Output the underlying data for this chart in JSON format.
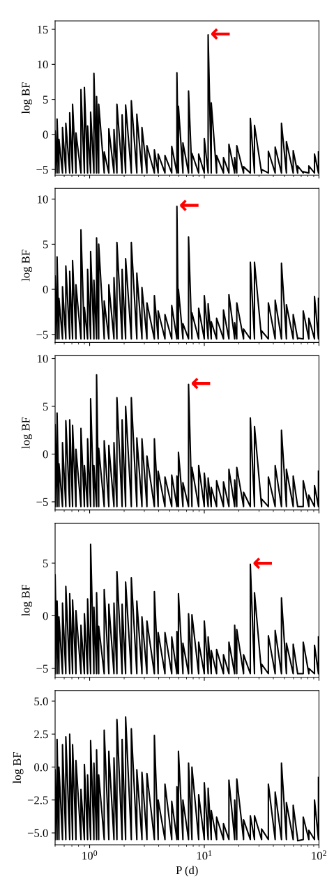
{
  "chart_data": [
    {
      "type": "line",
      "ylabel": "log BF",
      "log": "x",
      "tick_labels": "y",
      "xlim": [
        0.5,
        100
      ],
      "ylim": [
        -5.8,
        16.2
      ],
      "xticks": [
        {
          "value": 1,
          "label": null
        },
        {
          "value": 10,
          "label": null
        },
        {
          "value": 100,
          "label": null
        }
      ],
      "yticks": [
        -5,
        0,
        5,
        10,
        15
      ],
      "annotations": [
        {
          "text": "←",
          "x": 10.8,
          "y": 14.2
        }
      ],
      "x": [
        0.5,
        0.5,
        0.52,
        0.52,
        0.54,
        0.54,
        0.58,
        0.58,
        0.62,
        0.62,
        0.67,
        0.67,
        0.71,
        0.71,
        0.76,
        0.76,
        0.84,
        0.84,
        0.9,
        0.9,
        0.96,
        0.96,
        1.02,
        1.02,
        1.09,
        1.09,
        1.15,
        1.15,
        1.2,
        1.2,
        1.34,
        1.34,
        1.47,
        1.47,
        1.63,
        1.63,
        1.73,
        1.73,
        1.92,
        1.92,
        2.06,
        2.06,
        2.31,
        2.31,
        2.58,
        2.58,
        2.86,
        2.86,
        3.16,
        3.16,
        3.67,
        3.67,
        3.96,
        3.96,
        4.54,
        4.54,
        5.2,
        5.2,
        5.77,
        5.77,
        5.95,
        5.95,
        6.51,
        6.51,
        7.29,
        7.29,
        7.8,
        7.8,
        8.93,
        8.93,
        10.0,
        10.0,
        10.8,
        10.8,
        11.5,
        11.5,
        12.8,
        12.8,
        14.7,
        14.7,
        16.4,
        16.4,
        18.4,
        18.4,
        19.2,
        19.2,
        22.0,
        22.0,
        25.2,
        25.2,
        27.4,
        27.4,
        31.6,
        31.6,
        36.2,
        36.2,
        41.5,
        41.5,
        47.1,
        47.1,
        52.0,
        52.0,
        59.6,
        59.6,
        65.2,
        65.2,
        72.9,
        72.9,
        81.6,
        81.6,
        91.4,
        91.4,
        99,
        99
      ],
      "series": [
        {
          "color": "#000000",
          "values": [
            -5.5,
            0.5,
            -5.5,
            2.2,
            -5.5,
            -0.7,
            -5.5,
            1.0,
            -5.5,
            1.6,
            -5.5,
            3.1,
            -5.5,
            4.3,
            -5.5,
            0.2,
            -5.5,
            6.4,
            -5.5,
            6.7,
            -5.5,
            1.2,
            -5.5,
            3.2,
            -5.5,
            8.7,
            -5.5,
            5.4,
            -5.5,
            4.3,
            -5.5,
            -2.5,
            -5.5,
            0.8,
            -5.5,
            0.7,
            -5.5,
            4.3,
            -5.5,
            2.8,
            -5.5,
            4.2,
            -5.5,
            4.8,
            -5.5,
            2.9,
            -5.5,
            1.0,
            -5.5,
            -1.6,
            -5.5,
            -2.2,
            -5.5,
            -2.8,
            -5.5,
            -3.0,
            -5.5,
            -1.7,
            -5.5,
            8.8,
            -5.5,
            4.0,
            -5.5,
            -1.2,
            -5.5,
            6.2,
            -5.5,
            -2.7,
            -5.5,
            -2.8,
            -5.5,
            -0.6,
            -5.5,
            14.2,
            -5.5,
            4.5,
            -5.5,
            -3.0,
            -5.5,
            -3.3,
            -5.5,
            -1.4,
            -5.5,
            -3.3,
            -5.5,
            -1.6,
            -5.5,
            -4.6,
            -5.5,
            2.3,
            -5.5,
            1.3,
            -5.5,
            -5.0,
            -5.5,
            -2.4,
            -5.5,
            -1.8,
            -5.5,
            1.6,
            -5.5,
            -1.0,
            -5.5,
            -2.3,
            -5.5,
            -4.5,
            -5.5,
            -5.3,
            -5.5,
            -4.5,
            -5.5,
            -2.8,
            -5.5,
            -2.5
          ]
        }
      ]
    },
    {
      "type": "line",
      "ylabel": "log BF",
      "log": "x",
      "tick_labels": "y",
      "xlim": [
        0.5,
        100
      ],
      "ylim": [
        -5.9,
        11.2
      ],
      "xticks": [
        {
          "value": 1,
          "label": null
        },
        {
          "value": 10,
          "label": null
        },
        {
          "value": 100,
          "label": null
        }
      ],
      "yticks": [
        -5,
        0,
        5,
        10
      ],
      "annotations": [
        {
          "text": "←",
          "x": 5.77,
          "y": 9.2
        }
      ],
      "x": [
        0.5,
        0.5,
        0.52,
        0.52,
        0.54,
        0.54,
        0.58,
        0.58,
        0.62,
        0.62,
        0.67,
        0.67,
        0.71,
        0.71,
        0.76,
        0.76,
        0.84,
        0.84,
        0.9,
        0.9,
        0.96,
        0.96,
        1.02,
        1.02,
        1.09,
        1.09,
        1.15,
        1.15,
        1.2,
        1.2,
        1.34,
        1.34,
        1.47,
        1.47,
        1.63,
        1.63,
        1.73,
        1.73,
        1.92,
        1.92,
        2.06,
        2.06,
        2.31,
        2.31,
        2.58,
        2.58,
        2.86,
        2.86,
        3.16,
        3.16,
        3.67,
        3.67,
        3.96,
        3.96,
        4.54,
        4.54,
        5.2,
        5.2,
        5.77,
        5.77,
        5.95,
        5.95,
        6.51,
        6.51,
        7.29,
        7.29,
        7.8,
        7.8,
        8.93,
        8.93,
        10.0,
        10.0,
        10.8,
        10.8,
        11.5,
        11.5,
        12.8,
        12.8,
        14.7,
        14.7,
        16.4,
        16.4,
        18.4,
        18.4,
        19.2,
        19.2,
        22.0,
        22.0,
        25.2,
        25.2,
        27.4,
        27.4,
        31.6,
        31.6,
        36.2,
        36.2,
        41.5,
        41.5,
        47.1,
        47.1,
        52.0,
        52.0,
        59.6,
        59.6,
        65.2,
        65.2,
        72.9,
        72.9,
        81.6,
        81.6,
        91.4,
        91.4,
        99,
        99
      ],
      "series": [
        {
          "color": "#000000",
          "values": [
            -5.5,
            1.5,
            -5.5,
            3.6,
            -5.5,
            -1.0,
            -5.5,
            0.3,
            -5.5,
            2.6,
            -5.5,
            2.0,
            -5.5,
            3.2,
            -5.5,
            0.5,
            -5.5,
            6.6,
            -5.5,
            -2.0,
            -5.5,
            2.2,
            -5.5,
            4.2,
            -5.5,
            1.0,
            -5.5,
            5.7,
            -5.5,
            5.0,
            -5.5,
            -1.3,
            -5.5,
            0.5,
            -5.5,
            1.3,
            -5.5,
            5.2,
            -5.5,
            2.2,
            -5.5,
            3.4,
            -5.5,
            5.2,
            -5.5,
            1.8,
            -5.5,
            0.2,
            -5.5,
            -1.5,
            -5.5,
            -0.7,
            -5.5,
            -2.4,
            -5.5,
            -2.8,
            -5.5,
            -1.8,
            -5.5,
            9.2,
            -5.5,
            0.0,
            -5.5,
            -3.8,
            -5.5,
            5.8,
            -5.5,
            -2.6,
            -5.5,
            -2.1,
            -5.5,
            -0.7,
            -5.5,
            -1.6,
            -5.5,
            -3.6,
            -5.5,
            -3.2,
            -5.5,
            -2.3,
            -5.5,
            -0.6,
            -5.5,
            -3.7,
            -5.5,
            -1.5,
            -5.5,
            -4.4,
            -5.5,
            3.0,
            -5.5,
            3.0,
            -5.5,
            -4.6,
            -5.5,
            -1.5,
            -5.5,
            -1.2,
            -5.5,
            2.9,
            -5.5,
            -1.7,
            -5.5,
            -2.8,
            -5.5,
            -5.4,
            -5.5,
            -2.4,
            -5.5,
            -3.2,
            -5.5,
            -0.8,
            -5.5,
            -1.0
          ]
        }
      ]
    },
    {
      "type": "line",
      "ylabel": "log BF",
      "log": "x",
      "tick_labels": "y",
      "xlim": [
        0.5,
        100
      ],
      "ylim": [
        -5.85,
        10.3
      ],
      "xticks": [
        {
          "value": 1,
          "label": null
        },
        {
          "value": 10,
          "label": null
        },
        {
          "value": 100,
          "label": null
        }
      ],
      "yticks": [
        -5,
        0,
        5,
        10
      ],
      "annotations": [
        {
          "text": "←",
          "x": 7.29,
          "y": 7.3
        }
      ],
      "x": [
        0.5,
        0.5,
        0.52,
        0.52,
        0.54,
        0.54,
        0.58,
        0.58,
        0.62,
        0.62,
        0.67,
        0.67,
        0.71,
        0.71,
        0.76,
        0.76,
        0.84,
        0.84,
        0.9,
        0.9,
        0.96,
        0.96,
        1.02,
        1.02,
        1.09,
        1.09,
        1.15,
        1.15,
        1.2,
        1.2,
        1.34,
        1.34,
        1.47,
        1.47,
        1.63,
        1.63,
        1.73,
        1.73,
        1.92,
        1.92,
        2.06,
        2.06,
        2.31,
        2.31,
        2.58,
        2.58,
        2.86,
        2.86,
        3.16,
        3.16,
        3.67,
        3.67,
        3.96,
        3.96,
        4.54,
        4.54,
        5.2,
        5.2,
        5.77,
        5.77,
        5.95,
        5.95,
        6.51,
        6.51,
        7.29,
        7.29,
        7.8,
        7.8,
        8.93,
        8.93,
        10.0,
        10.0,
        10.8,
        10.8,
        11.5,
        11.5,
        12.8,
        12.8,
        14.7,
        14.7,
        16.4,
        16.4,
        18.4,
        18.4,
        19.2,
        19.2,
        22.0,
        22.0,
        25.2,
        25.2,
        27.4,
        27.4,
        31.6,
        31.6,
        36.2,
        36.2,
        41.5,
        41.5,
        47.1,
        47.1,
        52.0,
        52.0,
        59.6,
        59.6,
        65.2,
        65.2,
        72.9,
        72.9,
        81.6,
        81.6,
        91.4,
        91.4,
        99,
        99
      ],
      "series": [
        {
          "color": "#000000",
          "values": [
            -5.5,
            3.1,
            -5.5,
            4.3,
            -5.5,
            -1.0,
            -5.5,
            1.2,
            -5.5,
            3.5,
            -5.5,
            3.6,
            -5.5,
            3.0,
            -5.5,
            0.5,
            -5.5,
            2.7,
            -5.5,
            -1.2,
            -5.5,
            1.6,
            -5.5,
            5.8,
            -5.5,
            -1.2,
            -5.5,
            8.3,
            -5.5,
            0.6,
            -5.5,
            1.4,
            -5.5,
            0.9,
            -5.5,
            1.2,
            -5.5,
            5.9,
            -5.5,
            3.6,
            -5.5,
            5.0,
            -5.5,
            5.9,
            -5.5,
            1.7,
            -5.5,
            1.6,
            -5.5,
            -0.2,
            -5.5,
            1.6,
            -5.5,
            -1.8,
            -5.5,
            -2.4,
            -5.5,
            -2.2,
            -5.5,
            -2.3,
            -5.5,
            0.2,
            -5.5,
            -3.0,
            -5.5,
            7.3,
            -5.5,
            -1.4,
            -5.5,
            -1.2,
            -5.5,
            -2.0,
            -5.5,
            -2.5,
            -5.5,
            -3.5,
            -5.5,
            -2.8,
            -5.5,
            -2.9,
            -5.5,
            -1.6,
            -5.5,
            -2.7,
            -5.5,
            -1.4,
            -5.5,
            -4.0,
            -5.5,
            3.8,
            -5.5,
            2.9,
            -5.5,
            -4.7,
            -5.5,
            -2.4,
            -5.5,
            -1.2,
            -5.5,
            2.5,
            -5.5,
            -1.6,
            -5.5,
            -2.3,
            -5.5,
            -5.5,
            -5.5,
            -2.8,
            -5.5,
            -4.3,
            -5.5,
            -3.3,
            -5.5,
            -1.8
          ]
        }
      ]
    },
    {
      "type": "line",
      "ylabel": "log BF",
      "log": "x",
      "tick_labels": "y",
      "xlim": [
        0.5,
        100
      ],
      "ylim": [
        -5.85,
        8.8
      ],
      "xticks": [
        {
          "value": 1,
          "label": null
        },
        {
          "value": 10,
          "label": null
        },
        {
          "value": 100,
          "label": null
        }
      ],
      "yticks": [
        -5,
        0,
        5
      ],
      "annotations": [
        {
          "text": "←",
          "x": 25.2,
          "y": 4.9
        }
      ],
      "x": [
        0.5,
        0.5,
        0.52,
        0.52,
        0.54,
        0.54,
        0.58,
        0.58,
        0.62,
        0.62,
        0.67,
        0.67,
        0.71,
        0.71,
        0.76,
        0.76,
        0.84,
        0.84,
        0.9,
        0.9,
        0.96,
        0.96,
        1.02,
        1.02,
        1.09,
        1.09,
        1.15,
        1.15,
        1.2,
        1.2,
        1.34,
        1.34,
        1.47,
        1.47,
        1.63,
        1.63,
        1.73,
        1.73,
        1.92,
        1.92,
        2.06,
        2.06,
        2.31,
        2.31,
        2.58,
        2.58,
        2.86,
        2.86,
        3.16,
        3.16,
        3.67,
        3.67,
        3.96,
        3.96,
        4.54,
        4.54,
        5.2,
        5.2,
        5.77,
        5.77,
        5.95,
        5.95,
        6.51,
        6.51,
        7.29,
        7.29,
        7.8,
        7.8,
        8.93,
        8.93,
        10.0,
        10.0,
        10.8,
        10.8,
        11.5,
        11.5,
        12.8,
        12.8,
        14.7,
        14.7,
        16.4,
        16.4,
        18.4,
        18.4,
        19.2,
        19.2,
        22.0,
        22.0,
        25.2,
        25.2,
        27.4,
        27.4,
        31.6,
        31.6,
        36.2,
        36.2,
        41.5,
        41.5,
        47.1,
        47.1,
        52.0,
        52.0,
        59.6,
        59.6,
        65.2,
        65.2,
        72.9,
        72.9,
        81.6,
        81.6,
        91.4,
        91.4,
        99,
        99
      ],
      "series": [
        {
          "color": "#000000",
          "values": [
            -5.5,
            3.9,
            -5.5,
            1.4,
            -5.5,
            -0.1,
            -5.5,
            1.2,
            -5.5,
            2.8,
            -5.5,
            2.1,
            -5.5,
            1.5,
            -5.5,
            0.5,
            -5.5,
            -0.9,
            -5.5,
            0.2,
            -5.5,
            1.6,
            -5.5,
            6.8,
            -5.5,
            0.8,
            -5.5,
            2.2,
            -5.5,
            -1.0,
            -5.5,
            2.5,
            -5.5,
            1.1,
            -5.5,
            1.2,
            -5.5,
            4.2,
            -5.5,
            1.1,
            -5.5,
            3.2,
            -5.5,
            3.6,
            -5.5,
            1.4,
            -5.5,
            -0.1,
            -5.5,
            -0.5,
            -5.5,
            2.3,
            -5.5,
            -1.6,
            -5.5,
            -1.6,
            -5.5,
            -2.0,
            -5.5,
            -1.5,
            -5.5,
            2.1,
            -5.5,
            -2.6,
            -5.5,
            0.2,
            -5.5,
            0.1,
            -5.5,
            -2.5,
            -5.5,
            -0.5,
            -5.5,
            -2.0,
            -5.5,
            -3.3,
            -5.5,
            -3.2,
            -5.5,
            -3.7,
            -5.5,
            -2.5,
            -5.5,
            -0.9,
            -5.5,
            -1.3,
            -5.5,
            -3.7,
            -5.5,
            4.9,
            -5.5,
            2.2,
            -5.5,
            -4.6,
            -5.5,
            -1.9,
            -5.5,
            -1.4,
            -5.5,
            1.7,
            -5.5,
            -2.6,
            -5.5,
            -2.7,
            -5.5,
            -5.5,
            -5.5,
            -2.5,
            -5.5,
            -5.0,
            -5.5,
            -2.8,
            -5.5,
            -2.0
          ]
        }
      ]
    },
    {
      "type": "line",
      "ylabel": "log BF",
      "xlabel": "P (d)",
      "log": "x",
      "xlim": [
        0.5,
        100
      ],
      "ylim": [
        -5.9,
        5.8
      ],
      "xticks": [
        {
          "value": 1,
          "label": "10$^{0}$"
        },
        {
          "value": 10,
          "label": "10$^{1}$"
        },
        {
          "value": 100,
          "label": "10$^{2}$"
        }
      ],
      "yticks": [
        {
          "value": -5,
          "label": "−5.0"
        },
        {
          "value": -2.5,
          "label": "−2.5"
        },
        {
          "value": 0,
          "label": "0.0"
        },
        {
          "value": 2.5,
          "label": "2.5"
        },
        {
          "value": 5,
          "label": "5.0"
        }
      ],
      "x": [
        0.5,
        0.5,
        0.52,
        0.52,
        0.54,
        0.54,
        0.58,
        0.58,
        0.62,
        0.62,
        0.67,
        0.67,
        0.71,
        0.71,
        0.76,
        0.76,
        0.84,
        0.84,
        0.9,
        0.9,
        0.96,
        0.96,
        1.02,
        1.02,
        1.09,
        1.09,
        1.15,
        1.15,
        1.2,
        1.2,
        1.34,
        1.34,
        1.47,
        1.47,
        1.63,
        1.63,
        1.73,
        1.73,
        1.92,
        1.92,
        2.06,
        2.06,
        2.31,
        2.31,
        2.58,
        2.58,
        2.86,
        2.86,
        3.16,
        3.16,
        3.67,
        3.67,
        3.96,
        3.96,
        4.54,
        4.54,
        5.2,
        5.2,
        5.77,
        5.77,
        5.95,
        5.95,
        6.51,
        6.51,
        7.29,
        7.29,
        7.8,
        7.8,
        8.93,
        8.93,
        10.0,
        10.0,
        10.8,
        10.8,
        11.5,
        11.5,
        12.8,
        12.8,
        14.7,
        14.7,
        16.4,
        16.4,
        18.4,
        18.4,
        19.2,
        19.2,
        22.0,
        22.0,
        25.2,
        25.2,
        27.4,
        27.4,
        31.6,
        31.6,
        36.2,
        36.2,
        41.5,
        41.5,
        47.1,
        47.1,
        52.0,
        52.0,
        59.6,
        59.6,
        65.2,
        65.2,
        72.9,
        72.9,
        81.6,
        81.6,
        91.4,
        91.4,
        99,
        99
      ],
      "series": [
        {
          "color": "#000000",
          "values": [
            -5.5,
            -0.2,
            -5.5,
            2.1,
            -5.5,
            0.0,
            -5.5,
            1.7,
            -5.5,
            2.3,
            -5.5,
            2.5,
            -5.5,
            1.7,
            -5.5,
            0.5,
            -5.5,
            -1.7,
            -5.5,
            0.2,
            -5.5,
            -0.6,
            -5.5,
            2.0,
            -5.5,
            0.3,
            -5.5,
            1.3,
            -5.5,
            -0.6,
            -5.5,
            2.8,
            -5.5,
            1.2,
            -5.5,
            0.7,
            -5.5,
            3.6,
            -5.5,
            2.1,
            -5.5,
            3.8,
            -5.5,
            2.9,
            -5.5,
            -0.2,
            -5.5,
            -0.4,
            -5.5,
            -0.5,
            -5.5,
            2.4,
            -5.5,
            -2.5,
            -5.5,
            -1.3,
            -5.5,
            -2.6,
            -5.5,
            -1.5,
            -5.5,
            1.2,
            -5.5,
            -2.5,
            -5.5,
            0.3,
            -5.5,
            0.0,
            -5.5,
            -2.1,
            -5.5,
            -1.2,
            -5.5,
            -1.6,
            -5.5,
            -3.3,
            -5.5,
            -3.8,
            -5.5,
            -4.3,
            -5.5,
            -1.0,
            -5.5,
            -2.5,
            -5.5,
            -0.9,
            -5.5,
            -4.0,
            -5.5,
            -3.7,
            -5.5,
            -3.7,
            -5.5,
            -4.7,
            -5.5,
            -1.3,
            -5.5,
            -1.9,
            -5.5,
            0.3,
            -5.5,
            -2.7,
            -5.5,
            -2.9,
            -5.5,
            -5.6,
            -5.5,
            -3.8,
            -5.5,
            -4.8,
            -5.5,
            -2.5,
            -5.5,
            -0.8
          ]
        }
      ]
    }
  ]
}
